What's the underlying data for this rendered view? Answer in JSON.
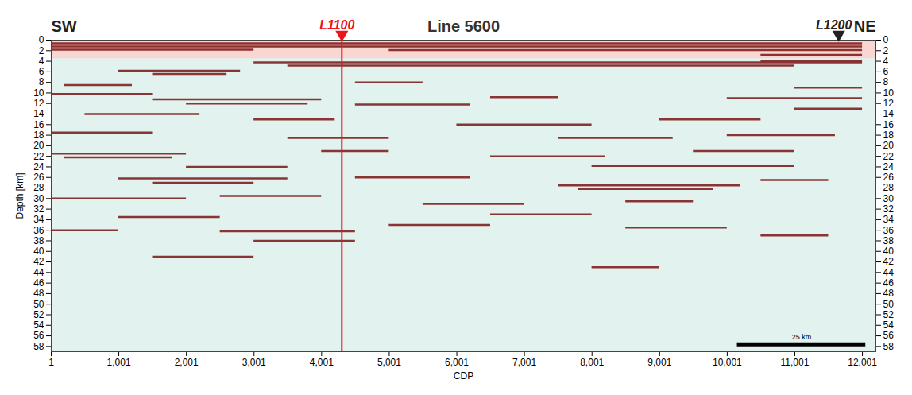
{
  "chart_data": {
    "type": "seismic_section",
    "title": "Line 5600",
    "left_label": "SW",
    "right_label": "NE",
    "x_label": "CDP",
    "y_label": "Depth [km]",
    "xlim": [
      1,
      12200
    ],
    "xticks": [
      1,
      1001,
      2001,
      3001,
      4001,
      5001,
      6001,
      7001,
      8001,
      9001,
      10001,
      11001,
      12001
    ],
    "ylim": [
      0,
      59
    ],
    "yticks": [
      0,
      2,
      4,
      6,
      8,
      10,
      12,
      14,
      16,
      18,
      20,
      22,
      24,
      26,
      28,
      30,
      32,
      34,
      36,
      38,
      40,
      42,
      44,
      46,
      48,
      50,
      52,
      54,
      56,
      58
    ],
    "color": "#7a1414",
    "markers": [
      {
        "label": "L1100",
        "x": 4300,
        "color": "#e8161b",
        "line_style": "solid"
      },
      {
        "label": "L1200",
        "x": 11650,
        "color": "#222222"
      }
    ],
    "scale_bar": {
      "x1": 10150,
      "x2": 12050,
      "depth": 57.6,
      "label": "25 km"
    },
    "shallow_zone": {
      "x1": 1,
      "x2": 12200,
      "y1": 0,
      "y2": 3.5
    },
    "reflectors": [
      {
        "x1": 1,
        "x2": 12001,
        "depth": 0.6
      },
      {
        "x1": 1,
        "x2": 12001,
        "depth": 1.2
      },
      {
        "x1": 1,
        "x2": 3000,
        "depth": 1.8
      },
      {
        "x1": 5000,
        "x2": 12001,
        "depth": 1.9
      },
      {
        "x1": 10500,
        "x2": 12001,
        "depth": 2.8
      },
      {
        "x1": 3000,
        "x2": 12001,
        "depth": 4.2
      },
      {
        "x1": 3500,
        "x2": 11000,
        "depth": 4.8
      },
      {
        "x1": 10500,
        "x2": 12001,
        "depth": 3.9
      },
      {
        "x1": 1000,
        "x2": 2800,
        "depth": 5.8
      },
      {
        "x1": 1500,
        "x2": 2600,
        "depth": 6.4
      },
      {
        "x1": 200,
        "x2": 1200,
        "depth": 8.5
      },
      {
        "x1": 4500,
        "x2": 5500,
        "depth": 8
      },
      {
        "x1": 11000,
        "x2": 12001,
        "depth": 9
      },
      {
        "x1": 1,
        "x2": 1500,
        "depth": 10.2
      },
      {
        "x1": 1500,
        "x2": 4000,
        "depth": 11.2
      },
      {
        "x1": 2000,
        "x2": 3800,
        "depth": 12
      },
      {
        "x1": 4500,
        "x2": 6200,
        "depth": 12.2
      },
      {
        "x1": 10000,
        "x2": 12001,
        "depth": 11
      },
      {
        "x1": 6500,
        "x2": 7500,
        "depth": 10.8
      },
      {
        "x1": 500,
        "x2": 2200,
        "depth": 14
      },
      {
        "x1": 3000,
        "x2": 4200,
        "depth": 15
      },
      {
        "x1": 6000,
        "x2": 8000,
        "depth": 16
      },
      {
        "x1": 9000,
        "x2": 10500,
        "depth": 15
      },
      {
        "x1": 11000,
        "x2": 12001,
        "depth": 13
      },
      {
        "x1": 7500,
        "x2": 9200,
        "depth": 18.5
      },
      {
        "x1": 10000,
        "x2": 11600,
        "depth": 18
      },
      {
        "x1": 3500,
        "x2": 5000,
        "depth": 18.5
      },
      {
        "x1": 1,
        "x2": 1500,
        "depth": 17.5
      },
      {
        "x1": 1,
        "x2": 2000,
        "depth": 21.5
      },
      {
        "x1": 200,
        "x2": 1800,
        "depth": 22.2
      },
      {
        "x1": 6500,
        "x2": 8200,
        "depth": 22
      },
      {
        "x1": 9500,
        "x2": 11000,
        "depth": 21
      },
      {
        "x1": 4000,
        "x2": 5000,
        "depth": 21
      },
      {
        "x1": 8000,
        "x2": 11000,
        "depth": 23.8
      },
      {
        "x1": 2000,
        "x2": 3500,
        "depth": 24
      },
      {
        "x1": 1000,
        "x2": 3500,
        "depth": 26.2
      },
      {
        "x1": 1500,
        "x2": 3000,
        "depth": 27
      },
      {
        "x1": 4500,
        "x2": 6200,
        "depth": 26
      },
      {
        "x1": 7500,
        "x2": 10200,
        "depth": 27.5
      },
      {
        "x1": 7800,
        "x2": 9800,
        "depth": 28.2
      },
      {
        "x1": 10500,
        "x2": 11500,
        "depth": 26.5
      },
      {
        "x1": 1,
        "x2": 2000,
        "depth": 30
      },
      {
        "x1": 2500,
        "x2": 4000,
        "depth": 29.5
      },
      {
        "x1": 5500,
        "x2": 7000,
        "depth": 31
      },
      {
        "x1": 8500,
        "x2": 9500,
        "depth": 30.5
      },
      {
        "x1": 1,
        "x2": 1000,
        "depth": 36
      },
      {
        "x1": 2500,
        "x2": 4500,
        "depth": 36.2
      },
      {
        "x1": 5000,
        "x2": 6500,
        "depth": 35
      },
      {
        "x1": 8500,
        "x2": 10000,
        "depth": 35.5
      },
      {
        "x1": 3000,
        "x2": 4500,
        "depth": 38
      },
      {
        "x1": 6500,
        "x2": 8000,
        "depth": 33
      },
      {
        "x1": 1000,
        "x2": 2500,
        "depth": 33.5
      },
      {
        "x1": 10500,
        "x2": 11500,
        "depth": 37
      },
      {
        "x1": 1500,
        "x2": 3000,
        "depth": 41
      },
      {
        "x1": 8000,
        "x2": 9000,
        "depth": 43
      }
    ]
  }
}
